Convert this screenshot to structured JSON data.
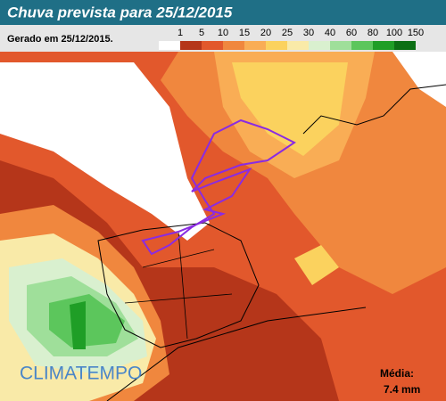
{
  "header": {
    "title": "Chuva prevista para 25/12/2015",
    "generated": "Gerado em 25/12/2015."
  },
  "legend": [
    {
      "label": "1",
      "color": "#ffffff"
    },
    {
      "label": "5",
      "color": "#b5361a"
    },
    {
      "label": "10",
      "color": "#e2582c"
    },
    {
      "label": "15",
      "color": "#f0873e"
    },
    {
      "label": "20",
      "color": "#f9ad55"
    },
    {
      "label": "25",
      "color": "#fbd25e"
    },
    {
      "label": "30",
      "color": "#f9eaa8"
    },
    {
      "label": "40",
      "color": "#d9f0cf"
    },
    {
      "label": "60",
      "color": "#9fdf9a"
    },
    {
      "label": "80",
      "color": "#5cc65c"
    },
    {
      "label": "100",
      "color": "#1f9e26"
    },
    {
      "label": "150",
      "color": "#0c6f14"
    }
  ],
  "brand": "CLIMATEMPO",
  "average": {
    "label": "Média:",
    "value": "7.4 mm"
  }
}
